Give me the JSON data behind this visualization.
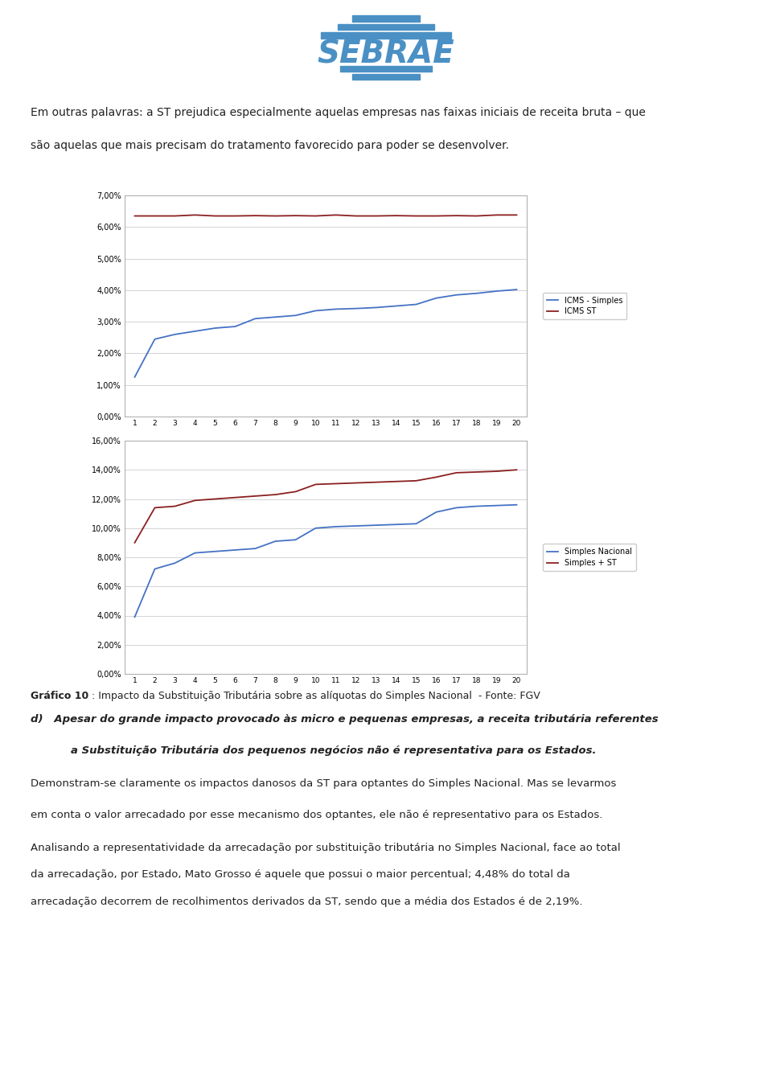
{
  "page_bg": "#ffffff",
  "logo_color": "#4a90c4",
  "header_text_line1": "Em outras palavras: a ST prejudica especialmente aquelas empresas nas faixas iniciais de receita bruta – que",
  "header_text_line2": "são aquelas que mais precisam do tratamento favorecido para poder se desenvolver.",
  "chart1": {
    "x_data": [
      1,
      2,
      3,
      4,
      5,
      6,
      7,
      8,
      9,
      10,
      11,
      12,
      13,
      14,
      15,
      16,
      17,
      18,
      19,
      20
    ],
    "icms_simples": [
      1.25,
      2.45,
      2.6,
      2.7,
      2.8,
      2.85,
      3.1,
      3.15,
      3.2,
      3.35,
      3.4,
      3.42,
      3.45,
      3.5,
      3.55,
      3.75,
      3.85,
      3.9,
      3.97,
      4.02
    ],
    "icms_st": [
      6.35,
      6.35,
      6.35,
      6.38,
      6.35,
      6.35,
      6.36,
      6.35,
      6.36,
      6.35,
      6.38,
      6.35,
      6.35,
      6.36,
      6.35,
      6.35,
      6.36,
      6.35,
      6.38,
      6.38
    ],
    "legend1": "ICMS - Simples",
    "legend2": "ICMS ST",
    "ymax": 7.0,
    "yticks": [
      0.0,
      1.0,
      2.0,
      3.0,
      4.0,
      5.0,
      6.0,
      7.0
    ],
    "ytick_labels": [
      "0,00%",
      "1,00%",
      "2,00%",
      "3,00%",
      "4,00%",
      "5,00%",
      "6,00%",
      "7,00%"
    ],
    "color_simples": "#4472c4",
    "color_st": "#8b2020"
  },
  "chart2": {
    "x_data": [
      1,
      2,
      3,
      4,
      5,
      6,
      7,
      8,
      9,
      10,
      11,
      12,
      13,
      14,
      15,
      16,
      17,
      18,
      19,
      20
    ],
    "simples_nacional": [
      3.9,
      7.2,
      7.6,
      8.3,
      8.4,
      8.5,
      8.6,
      9.1,
      9.2,
      10.0,
      10.1,
      10.15,
      10.2,
      10.25,
      10.3,
      11.1,
      11.4,
      11.5,
      11.55,
      11.6
    ],
    "simples_st": [
      9.0,
      11.4,
      11.5,
      11.9,
      12.0,
      12.1,
      12.2,
      12.3,
      12.5,
      13.0,
      13.05,
      13.1,
      13.15,
      13.2,
      13.25,
      13.5,
      13.8,
      13.85,
      13.9,
      14.0
    ],
    "legend1": "Simples Nacional",
    "legend2": "Simples + ST",
    "ymax": 16.0,
    "yticks": [
      0.0,
      2.0,
      4.0,
      6.0,
      8.0,
      10.0,
      12.0,
      14.0,
      16.0
    ],
    "ytick_labels": [
      "0,00%",
      "2,00%",
      "4,00%",
      "6,00%",
      "8,00%",
      "10,00%",
      "12,00%",
      "14,00%",
      "16,00%"
    ],
    "color_simples": "#4472c4",
    "color_st": "#8b2020"
  },
  "caption_bold": "Gráfico 10",
  "caption_normal": ": Impacto da Substituição Tributária sobre as alíquotas do Simples Nacional  - Fonte: FGV",
  "section_d_label": "d)",
  "section_d_text": "Apesar do grande impacto provocado às micro e pequenas empresas, a receita tributária referentes a Substituição Tributária dos pequenos negócios não é representativa para os Estados.",
  "paragraph1_line1": "Demonstram-se claramente os impactos danosos da ST para optantes do Simples Nacional. Mas se levarmos",
  "paragraph1_line2": "em conta o valor arrecadado por esse mecanismo dos optantes, ele não é representativo para os Estados.",
  "paragraph2_line1": "Analisando a representatividade da arrecadação por substituição tributária no Simples Nacional, face ao total",
  "paragraph2_line2": "da arrecadação, por Estado, Mato Grosso é aquele que possui o maior percentual; 4,48% do total da",
  "paragraph2_line3": "arrecadação decorrem de recolhimentos derivados da ST, sendo que a média dos Estados é de 2,19%."
}
